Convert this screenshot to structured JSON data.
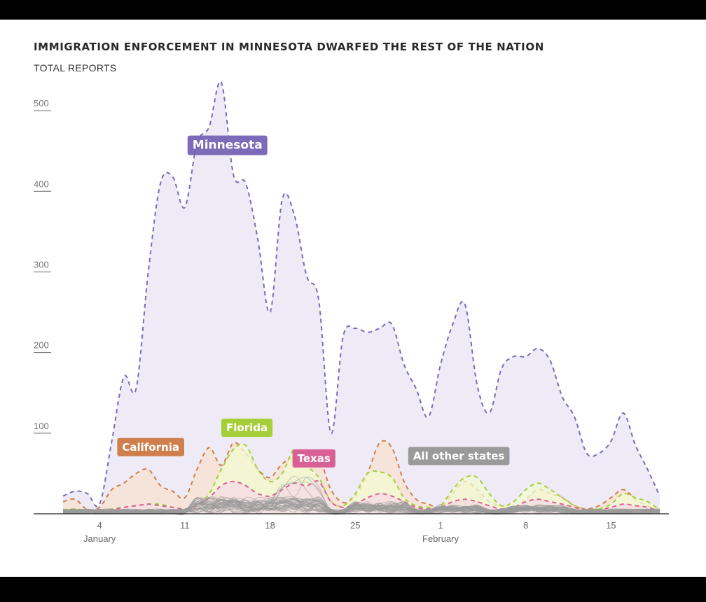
{
  "chart_data": {
    "type": "area",
    "title": "IMMIGRATION ENFORCEMENT IN MINNESOTA DWARFED THE REST OF THE NATION",
    "ylabel": "TOTAL REPORTS",
    "xlabel": "",
    "ylim": [
      0,
      540
    ],
    "yticks": [
      100,
      200,
      300,
      400,
      500
    ],
    "x_domain": [
      1,
      50
    ],
    "x_ticks": [
      {
        "day": 4,
        "label": "4",
        "month": "January"
      },
      {
        "day": 11,
        "label": "11",
        "month": ""
      },
      {
        "day": 18,
        "label": "18",
        "month": ""
      },
      {
        "day": 25,
        "label": "25",
        "month": ""
      },
      {
        "day": 32,
        "label": "1",
        "month": "February"
      },
      {
        "day": 39,
        "label": "8",
        "month": ""
      },
      {
        "day": 46,
        "label": "15",
        "month": ""
      }
    ],
    "series": [
      {
        "name": "Minnesota",
        "color": "#7b6bb8",
        "fill": "#eeebf6",
        "label": {
          "day": 14.5,
          "value": 458,
          "text": "Minnesota"
        },
        "x": [
          1,
          2,
          3,
          4,
          5,
          6,
          7,
          8,
          9,
          10,
          11,
          12,
          13,
          14,
          15,
          16,
          17,
          18,
          19,
          20,
          21,
          22,
          23,
          24,
          25,
          26,
          27,
          28,
          29,
          30,
          31,
          32,
          33,
          34,
          35,
          36,
          37,
          38,
          39,
          40,
          41,
          42,
          43,
          44,
          45,
          46,
          47,
          48,
          49,
          50
        ],
        "values": [
          22,
          28,
          25,
          12,
          90,
          170,
          155,
          300,
          410,
          418,
          380,
          460,
          480,
          535,
          420,
          410,
          340,
          250,
          390,
          370,
          295,
          265,
          100,
          220,
          230,
          225,
          230,
          235,
          185,
          155,
          120,
          185,
          235,
          260,
          160,
          125,
          180,
          195,
          195,
          205,
          190,
          145,
          120,
          75,
          75,
          90,
          125,
          85,
          55,
          22
        ]
      },
      {
        "name": "California",
        "color": "#cf7e4c",
        "fill": "#f8e1d0",
        "label": {
          "day": 8.2,
          "value": 83,
          "text": "California"
        },
        "x": [
          1,
          2,
          3,
          4,
          5,
          6,
          7,
          8,
          9,
          10,
          11,
          12,
          13,
          14,
          15,
          16,
          17,
          18,
          19,
          20,
          21,
          22,
          23,
          24,
          25,
          26,
          27,
          28,
          29,
          30,
          31,
          32,
          33,
          34,
          35,
          36,
          37,
          38,
          39,
          40,
          41,
          42,
          43,
          44,
          45,
          46,
          47,
          48,
          49,
          50
        ],
        "values": [
          15,
          18,
          5,
          8,
          30,
          38,
          50,
          55,
          35,
          28,
          20,
          55,
          82,
          60,
          88,
          75,
          55,
          45,
          62,
          70,
          65,
          70,
          30,
          14,
          22,
          50,
          88,
          82,
          40,
          18,
          12,
          8,
          25,
          40,
          30,
          15,
          10,
          6,
          18,
          30,
          25,
          20,
          10,
          6,
          10,
          20,
          30,
          18,
          10,
          5
        ]
      },
      {
        "name": "Florida",
        "color": "#a6ce39",
        "fill": "#f1fbd0",
        "label": {
          "day": 16.1,
          "value": 107,
          "text": "Florida"
        },
        "x": [
          1,
          2,
          3,
          4,
          5,
          6,
          7,
          8,
          9,
          10,
          11,
          12,
          13,
          14,
          15,
          16,
          17,
          18,
          19,
          20,
          21,
          22,
          23,
          24,
          25,
          26,
          27,
          28,
          29,
          30,
          31,
          32,
          33,
          34,
          35,
          36,
          37,
          38,
          39,
          40,
          41,
          42,
          43,
          44,
          45,
          46,
          47,
          48,
          49,
          50
        ],
        "values": [
          5,
          6,
          4,
          3,
          6,
          8,
          10,
          12,
          12,
          8,
          6,
          10,
          25,
          55,
          80,
          85,
          55,
          40,
          50,
          80,
          60,
          45,
          15,
          10,
          25,
          50,
          52,
          45,
          20,
          10,
          8,
          10,
          30,
          45,
          45,
          25,
          10,
          15,
          30,
          38,
          30,
          20,
          10,
          5,
          6,
          12,
          25,
          20,
          15,
          5
        ]
      },
      {
        "name": "Texas",
        "color": "#d96094",
        "fill": "#f7d9e5",
        "label": {
          "day": 21.6,
          "value": 69,
          "text": "Texas"
        },
        "x": [
          1,
          2,
          3,
          4,
          5,
          6,
          7,
          8,
          9,
          10,
          11,
          12,
          13,
          14,
          15,
          16,
          17,
          18,
          19,
          20,
          21,
          22,
          23,
          24,
          25,
          26,
          27,
          28,
          29,
          30,
          31,
          32,
          33,
          34,
          35,
          36,
          37,
          38,
          39,
          40,
          41,
          42,
          43,
          44,
          45,
          46,
          47,
          48,
          49,
          50
        ],
        "values": [
          3,
          4,
          3,
          2,
          5,
          8,
          10,
          12,
          10,
          8,
          6,
          10,
          20,
          35,
          40,
          35,
          25,
          22,
          30,
          38,
          35,
          40,
          15,
          8,
          12,
          20,
          25,
          22,
          15,
          8,
          6,
          8,
          15,
          18,
          15,
          10,
          6,
          8,
          15,
          18,
          15,
          12,
          8,
          4,
          5,
          8,
          12,
          10,
          8,
          3
        ]
      },
      {
        "name": "All other states",
        "color": "#9a9a9a",
        "fill": "none",
        "label": {
          "day": 33.5,
          "value": 72,
          "text": "All other states"
        },
        "count": 40
      }
    ]
  }
}
